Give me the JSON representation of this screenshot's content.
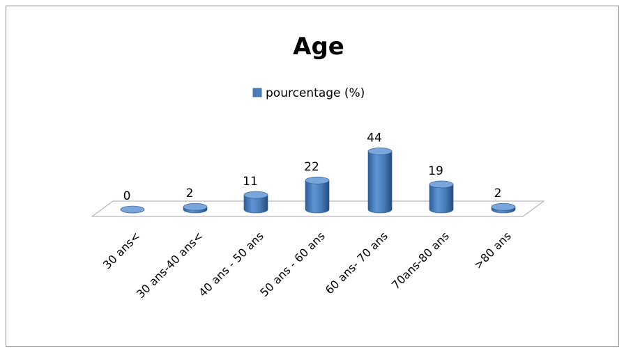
{
  "chart_data": {
    "type": "bar",
    "style": "3d-cylinder",
    "title": "Age",
    "categories": [
      "30 ans<",
      "30 ans-40 ans<",
      "40 ans - 50 ans",
      "50 ans - 60 ans",
      "60 ans- 70 ans",
      "70ans-80 ans",
      ">80 ans"
    ],
    "series": [
      {
        "name": "pourcentage (%)",
        "values": [
          0,
          2,
          11,
          22,
          44,
          19,
          2
        ],
        "color": "#4a7ebb"
      }
    ],
    "data_labels": [
      "0",
      "2",
      "11",
      "22",
      "44",
      "19",
      "2"
    ],
    "legend_position": "top",
    "grid": false
  }
}
